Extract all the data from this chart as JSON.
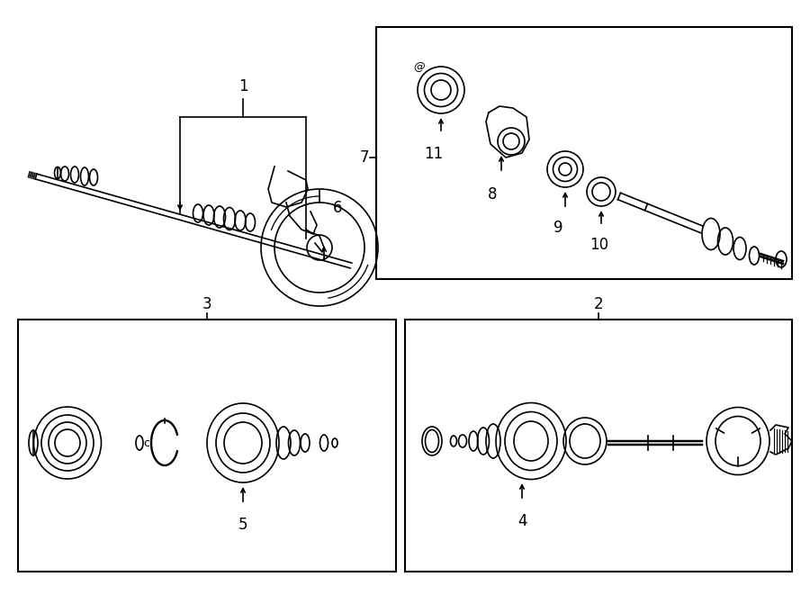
{
  "bg_color": "#ffffff",
  "line_color": "#000000",
  "fig_width": 9.0,
  "fig_height": 6.61,
  "dpi": 100,
  "lw": 1.2,
  "lw_thick": 2.0,
  "label_fontsize": 12
}
